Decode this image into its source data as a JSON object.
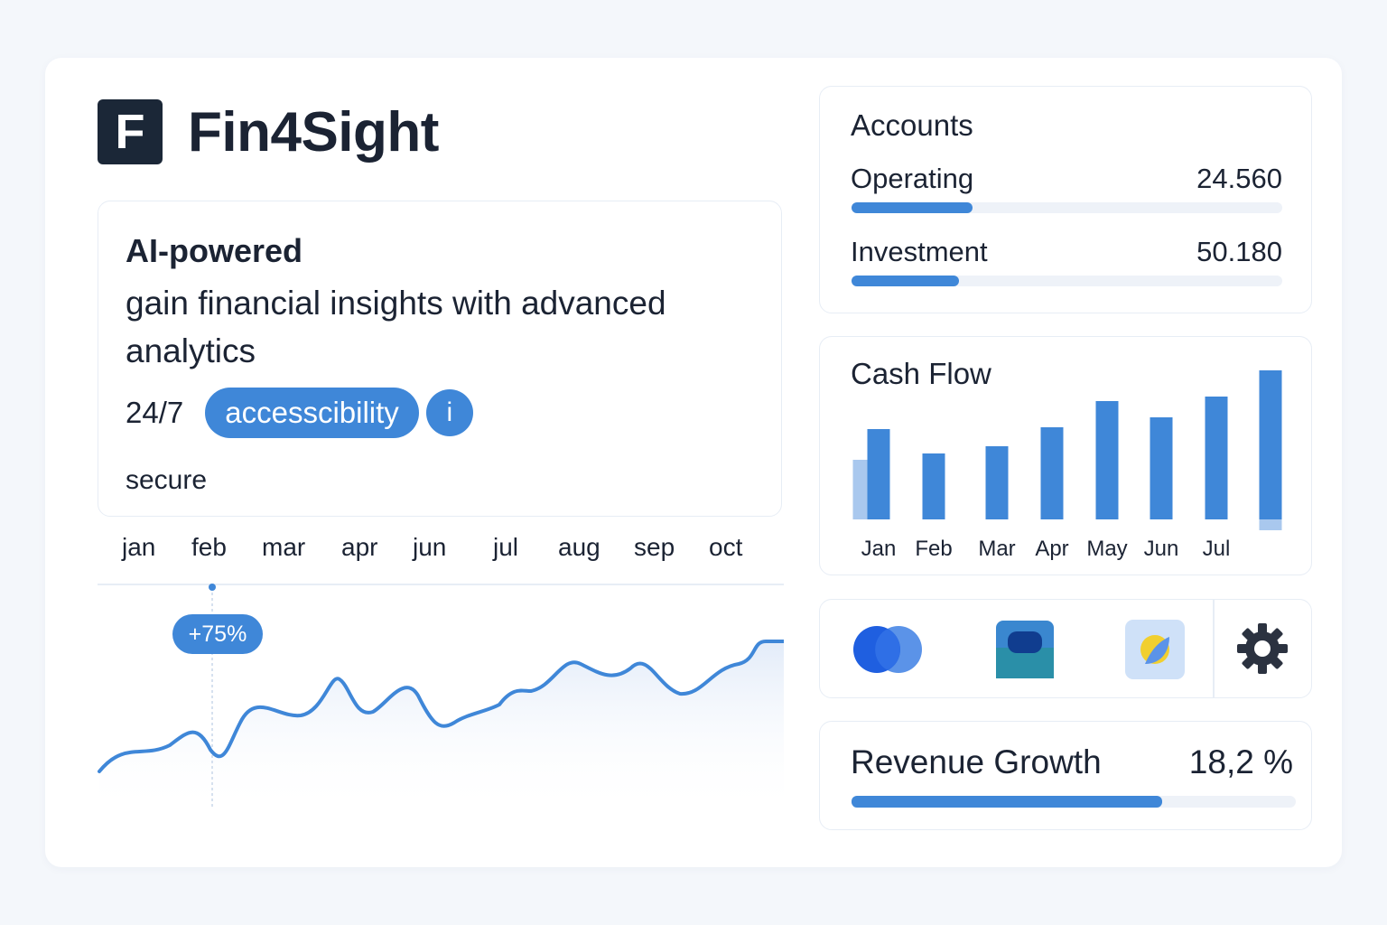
{
  "brand": {
    "logo_letter": "F",
    "name": "Fin4Sight"
  },
  "hero": {
    "title": "AI-powered",
    "subtitle": "gain financial insights with advanced analytics",
    "availability": "24/7",
    "pill_label": "accesscibility",
    "info_label": "i",
    "secure_label": "secure"
  },
  "trend": {
    "months": [
      "jan",
      "feb",
      "mar",
      "apr",
      "jun",
      "jul",
      "aug",
      "sep",
      "oct"
    ],
    "badge": "+75%",
    "line_color": "#3f87d8"
  },
  "accounts": {
    "title": "Accounts",
    "items": [
      {
        "label": "Operating",
        "value": "24.560",
        "progress": 0.28
      },
      {
        "label": "Investment",
        "value": "50.180",
        "progress": 0.25
      }
    ]
  },
  "chart_data": {
    "type": "bar",
    "title": "Cash Flow",
    "categories": [
      "Jan",
      "Feb",
      "Mar",
      "Apr",
      "May",
      "Jun",
      "Jul",
      ""
    ],
    "series": [
      {
        "values": [
          100,
          73,
          81,
          102,
          131,
          113,
          136,
          165
        ]
      }
    ],
    "secondary_values": [
      66,
      null,
      null,
      null,
      null,
      null,
      null,
      12
    ],
    "ylim": [
      0,
      170
    ],
    "grid": false,
    "color": "#3f87d8",
    "secondary_color": "#a9c8ee"
  },
  "apps": {
    "icons": [
      "overlapping-circles-icon",
      "wallet-icon",
      "pie-leaf-icon",
      "gear-icon"
    ]
  },
  "revenue": {
    "label": "Revenue Growth",
    "value": "18,2 %",
    "progress": 0.7
  },
  "colors": {
    "accent": "#3f87d8",
    "dark": "#1b2737",
    "border": "#e7edf5"
  }
}
